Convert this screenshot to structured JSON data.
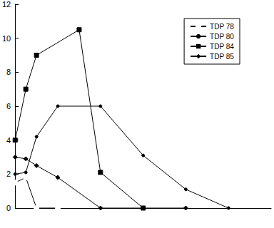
{
  "chart_data": {
    "type": "line",
    "legend": "upper right",
    "grid": false,
    "tick_labels": "y",
    "xlim": [
      0,
      12
    ],
    "ylim": [
      0,
      12
    ],
    "yticks": [
      0,
      2,
      4,
      6,
      8,
      10,
      12
    ],
    "series": [
      {
        "name": "TDP 78",
        "color": "#000000",
        "marker": "circle-open",
        "x": [
          0,
          0.5,
          1,
          2
        ],
        "values": [
          1.5,
          1.8,
          0,
          0
        ]
      },
      {
        "name": "TDP 80",
        "color": "#000000",
        "marker": "circle",
        "x": [
          0,
          0.5,
          1,
          2,
          4,
          6,
          8,
          10
        ],
        "values": [
          2,
          2.1,
          4.2,
          6,
          6,
          3.1,
          1.1,
          0
        ]
      },
      {
        "name": "TDP 84",
        "color": "#000000",
        "marker": "square",
        "x": [
          0,
          0.5,
          1,
          3,
          4,
          6
        ],
        "values": [
          4,
          7,
          9,
          10.5,
          2.1,
          0
        ]
      },
      {
        "name": "TDP 85",
        "color": "#000000",
        "marker": "diamond",
        "x": [
          0,
          0.5,
          1,
          2,
          4,
          6,
          8
        ],
        "values": [
          3,
          2.9,
          2.5,
          1.8,
          0,
          0,
          0
        ]
      }
    ]
  }
}
